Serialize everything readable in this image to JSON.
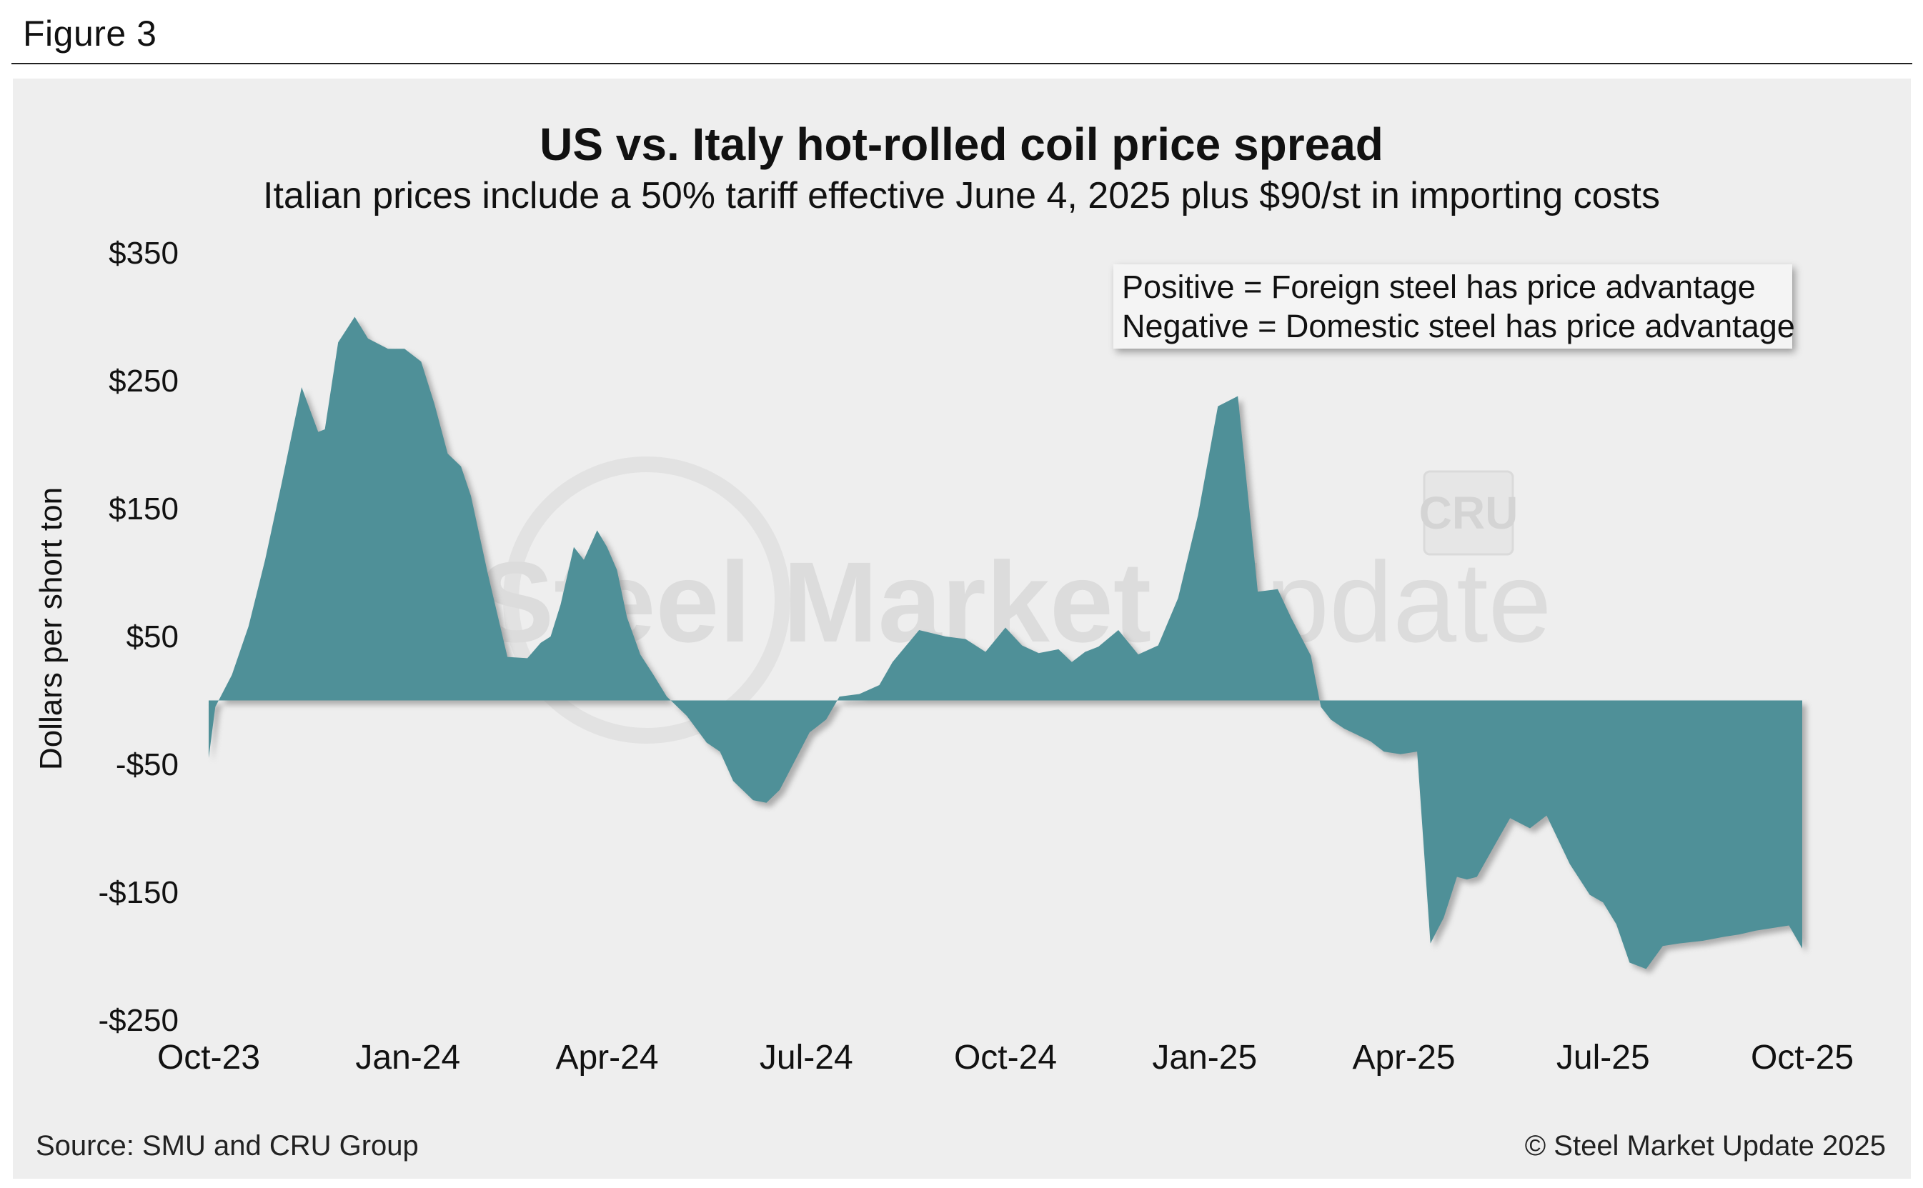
{
  "figure_label": "Figure 3",
  "source": "Source: SMU and CRU Group",
  "copyright": "© Steel Market Update 2025",
  "watermark": {
    "text_bold": "Steel Market",
    "text_light": "Update",
    "badge": "CRU"
  },
  "legend": {
    "positive": "Positive = Foreign steel has price advantage",
    "negative": "Negative = Domestic steel has price advantage"
  },
  "colors": {
    "area": "#4f9098",
    "shadow": "#777777"
  },
  "chart_data": {
    "type": "area",
    "title": "US vs. Italy hot-rolled coil price spread",
    "subtitle": "Italian prices include a 50% tariff effective June 4, 2025 plus $90/st in importing costs",
    "xlabel": "",
    "ylabel": "Dollars per short ton",
    "ylim": [
      -250,
      350
    ],
    "yticks": [
      350,
      250,
      150,
      50,
      -50,
      -150,
      -250
    ],
    "ytick_labels": [
      "$350",
      "$250",
      "$150",
      "$50",
      "-$50",
      "-$150",
      "-$250"
    ],
    "x_unit": "months since Oct-23",
    "xticks": [
      0,
      3,
      6,
      9,
      12,
      15,
      18,
      21,
      24
    ],
    "xtick_labels": [
      "Oct-23",
      "Jan-24",
      "Apr-24",
      "Jul-24",
      "Oct-24",
      "Jan-25",
      "Apr-25",
      "Jul-25",
      "Oct-25"
    ],
    "series": [
      {
        "name": "US vs. Italy HRC spread",
        "x": [
          0,
          0.1,
          0.35,
          0.6,
          0.85,
          1.1,
          1.4,
          1.65,
          1.75,
          1.95,
          2.2,
          2.4,
          2.7,
          2.95,
          3.2,
          3.4,
          3.6,
          3.8,
          3.95,
          4.2,
          4.5,
          4.8,
          5.0,
          5.15,
          5.3,
          5.5,
          5.65,
          5.85,
          6.0,
          6.15,
          6.3,
          6.5,
          6.7,
          6.9,
          7.2,
          7.5,
          7.7,
          7.9,
          8.2,
          8.4,
          8.6,
          8.8,
          9.05,
          9.3,
          9.5,
          9.8,
          10.1,
          10.3,
          10.7,
          11.1,
          11.4,
          11.7,
          12.0,
          12.25,
          12.5,
          12.8,
          13.0,
          13.2,
          13.4,
          13.7,
          14.0,
          14.3,
          14.6,
          14.9,
          15.2,
          15.5,
          15.8,
          16.1,
          16.3,
          16.6,
          16.75,
          16.9,
          17.1,
          17.3,
          17.5,
          17.7,
          17.95,
          18.2,
          18.4,
          18.6,
          18.8,
          18.95,
          19.1,
          19.35,
          19.6,
          19.9,
          20.15,
          20.5,
          20.8,
          21.0,
          21.2,
          21.4,
          21.65,
          21.9,
          22.15,
          22.5,
          22.8,
          23.05,
          23.3,
          23.55,
          23.8,
          24.0
        ],
        "values": [
          -45,
          -5,
          20,
          58,
          110,
          170,
          245,
          210,
          212,
          280,
          300,
          283,
          275,
          275,
          265,
          232,
          193,
          183,
          160,
          100,
          34,
          33,
          45,
          50,
          75,
          120,
          110,
          133,
          120,
          102,
          65,
          36,
          20,
          3,
          -12,
          -33,
          -40,
          -63,
          -78,
          -80,
          -70,
          -50,
          -25,
          -15,
          3,
          5,
          12,
          30,
          55,
          50,
          48,
          38,
          57,
          43,
          37,
          40,
          30,
          38,
          42,
          55,
          36,
          43,
          80,
          145,
          230,
          238,
          85,
          87,
          65,
          35,
          -5,
          -15,
          -22,
          -27,
          -32,
          -40,
          -42,
          -40,
          -190,
          -170,
          -138,
          -140,
          -138,
          -115,
          -92,
          -100,
          -90,
          -128,
          -152,
          -158,
          -175,
          -205,
          -210,
          -192,
          -190,
          -188,
          -185,
          -183,
          -180,
          -178,
          -176,
          -194
        ]
      }
    ]
  }
}
